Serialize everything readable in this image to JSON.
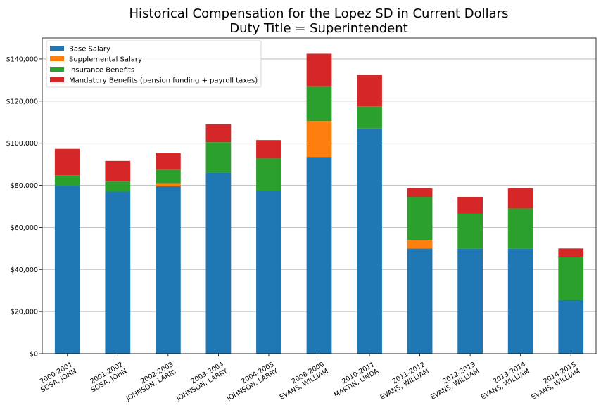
{
  "chart_data": {
    "type": "bar",
    "stacked": true,
    "title": [
      "Historical Compensation for the Lopez SD in Current Dollars",
      "Duty Title = Superintendent"
    ],
    "xlabel": "",
    "ylabel": "",
    "ylim": [
      0,
      150000
    ],
    "yticks": [
      0,
      20000,
      40000,
      60000,
      80000,
      100000,
      120000,
      140000
    ],
    "ytick_labels": [
      "$0",
      "$20,000",
      "$40,000",
      "$60,000",
      "$80,000",
      "$100,000",
      "$120,000",
      "$140,000"
    ],
    "grid": "horizontal",
    "legend_position": "top-left",
    "categories": [
      [
        "2000-2001",
        "SOSA, JOHN"
      ],
      [
        "2001-2002",
        "SOSA, JOHN"
      ],
      [
        "2002-2003",
        "JOHNSON, LARRY"
      ],
      [
        "2003-2004",
        "JOHNSON, LARRY"
      ],
      [
        "2004-2005",
        "JOHNSON, LARRY"
      ],
      [
        "2008-2009",
        "EVANS, WILLIAM"
      ],
      [
        "2010-2011",
        "MARTIN, LINDA"
      ],
      [
        "2011-2012",
        "EVANS, WILLIAM"
      ],
      [
        "2012-2013",
        "EVANS, WILLIAM"
      ],
      [
        "2013-2014",
        "EVANS, WILLIAM"
      ],
      [
        "2014-2015",
        "EVANS, WILLIAM"
      ]
    ],
    "series": [
      {
        "name": "Base Salary",
        "color": "#1f77b4",
        "values": [
          79800,
          77000,
          79500,
          86000,
          77500,
          93500,
          107000,
          50000,
          50000,
          50000,
          25500
        ]
      },
      {
        "name": "Supplemental Salary",
        "color": "#ff7f0e",
        "values": [
          0,
          0,
          1500,
          0,
          0,
          17000,
          0,
          4000,
          0,
          0,
          0
        ]
      },
      {
        "name": "Insurance Benefits",
        "color": "#2ca02c",
        "values": [
          5000,
          4800,
          6500,
          14500,
          15500,
          16500,
          10500,
          20500,
          16500,
          19000,
          20500
        ]
      },
      {
        "name": "Mandatory Benefits (pension funding + payroll taxes)",
        "color": "#d62728",
        "values": [
          12500,
          9800,
          7800,
          8500,
          8500,
          15500,
          15000,
          4000,
          8000,
          9500,
          4000
        ]
      }
    ]
  }
}
